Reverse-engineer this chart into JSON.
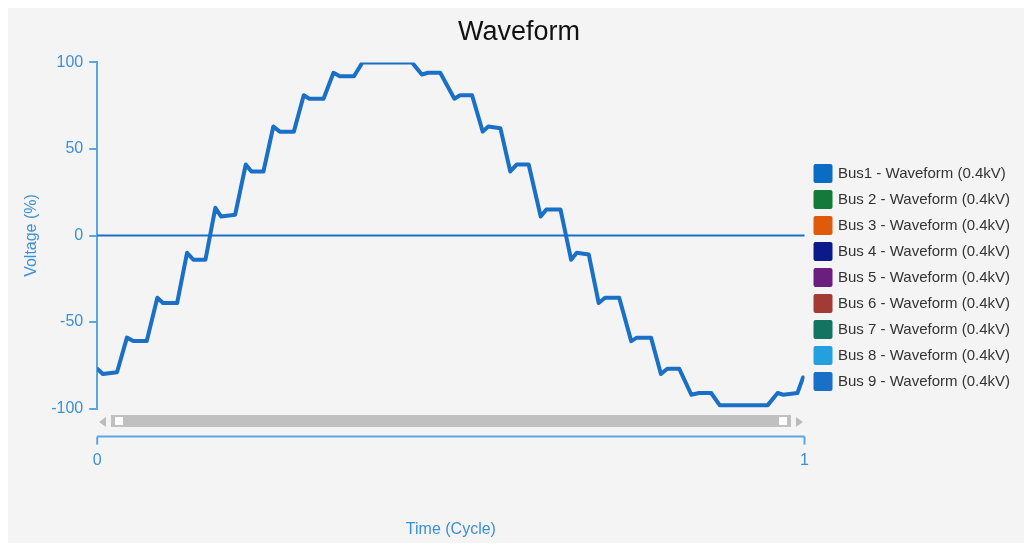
{
  "chart_data": {
    "type": "line",
    "title": "Waveform",
    "xlabel": "Time (Cycle)",
    "ylabel": "Voltage (%)",
    "x": [
      0,
      0.008,
      0.028,
      0.042,
      0.051,
      0.07,
      0.085,
      0.093,
      0.113,
      0.127,
      0.136,
      0.153,
      0.167,
      0.175,
      0.195,
      0.21,
      0.218,
      0.235,
      0.249,
      0.258,
      0.278,
      0.292,
      0.3,
      0.32,
      0.334,
      0.343,
      0.363,
      0.375,
      0.445,
      0.459,
      0.468,
      0.485,
      0.505,
      0.513,
      0.53,
      0.545,
      0.553,
      0.57,
      0.584,
      0.593,
      0.61,
      0.627,
      0.635,
      0.655,
      0.67,
      0.678,
      0.695,
      0.709,
      0.718,
      0.738,
      0.755,
      0.763,
      0.783,
      0.797,
      0.806,
      0.823,
      0.84,
      0.851,
      0.868,
      0.88,
      0.948,
      0.962,
      0.97,
      0.99,
      0.998
    ],
    "series": [
      {
        "name": "Bus1 - Waveform (0.4kV)",
        "color": "#0b6cc4",
        "values": [
          null,
          null,
          null,
          null,
          null,
          null,
          null,
          null,
          null,
          null,
          null,
          null,
          null,
          null,
          null,
          null,
          null,
          null,
          null,
          null,
          null,
          null,
          null,
          null,
          null,
          null,
          null,
          null,
          null,
          null,
          null,
          null,
          null,
          null,
          null,
          null,
          null,
          null,
          null,
          null,
          null,
          null,
          null,
          null,
          null,
          null,
          null,
          null,
          null,
          null,
          null,
          null,
          null,
          null,
          null,
          null,
          null,
          null,
          null,
          null,
          null,
          null,
          null,
          null,
          null
        ]
      },
      {
        "name": "Bus 2 - Waveform (0.4kV)",
        "color": "#137a3c",
        "values": [
          null,
          null,
          null,
          null,
          null,
          null,
          null,
          null,
          null,
          null,
          null,
          null,
          null,
          null,
          null,
          null,
          null,
          null,
          null,
          null,
          null,
          null,
          null,
          null,
          null,
          null,
          null,
          null,
          null,
          null,
          null,
          null,
          null,
          null,
          null,
          null,
          null,
          null,
          null,
          null,
          null,
          null,
          null,
          null,
          null,
          null,
          null,
          null,
          null,
          null,
          null,
          null,
          null,
          null,
          null,
          null,
          null,
          null,
          null,
          null,
          null,
          null,
          null,
          null,
          null
        ]
      },
      {
        "name": "Bus 3 - Waveform (0.4kV)",
        "color": "#e05a0c",
        "values": [
          null,
          null,
          null,
          null,
          null,
          null,
          null,
          null,
          null,
          null,
          null,
          null,
          null,
          null,
          null,
          null,
          null,
          null,
          null,
          null,
          null,
          null,
          null,
          null,
          null,
          null,
          null,
          null,
          null,
          null,
          null,
          null,
          null,
          null,
          null,
          null,
          null,
          null,
          null,
          null,
          null,
          null,
          null,
          null,
          null,
          null,
          null,
          null,
          null,
          null,
          null,
          null,
          null,
          null,
          null,
          null,
          null,
          null,
          null,
          null,
          null,
          null,
          null,
          null,
          null
        ]
      },
      {
        "name": "Bus 4 - Waveform (0.4kV)",
        "color": "#0a1a8a",
        "values": [
          null,
          null,
          null,
          null,
          null,
          null,
          null,
          null,
          null,
          null,
          null,
          null,
          null,
          null,
          null,
          null,
          null,
          null,
          null,
          null,
          null,
          null,
          null,
          null,
          null,
          null,
          null,
          null,
          null,
          null,
          null,
          null,
          null,
          null,
          null,
          null,
          null,
          null,
          null,
          null,
          null,
          null,
          null,
          null,
          null,
          null,
          null,
          null,
          null,
          null,
          null,
          null,
          null,
          null,
          null,
          null,
          null,
          null,
          null,
          null,
          null,
          null,
          null,
          null,
          null
        ]
      },
      {
        "name": "Bus 5 - Waveform (0.4kV)",
        "color": "#6a1f7e",
        "values": [
          null,
          null,
          null,
          null,
          null,
          null,
          null,
          null,
          null,
          null,
          null,
          null,
          null,
          null,
          null,
          null,
          null,
          null,
          null,
          null,
          null,
          null,
          null,
          null,
          null,
          null,
          null,
          null,
          null,
          null,
          null,
          null,
          null,
          null,
          null,
          null,
          null,
          null,
          null,
          null,
          null,
          null,
          null,
          null,
          null,
          null,
          null,
          null,
          null,
          null,
          null,
          null,
          null,
          null,
          null,
          null,
          null,
          null,
          null,
          null,
          null,
          null,
          null,
          null,
          null
        ]
      },
      {
        "name": "Bus 6 - Waveform (0.4kV)",
        "color": "#a23a36",
        "values": [
          null,
          null,
          null,
          null,
          null,
          null,
          null,
          null,
          null,
          null,
          null,
          null,
          null,
          null,
          null,
          null,
          null,
          null,
          null,
          null,
          null,
          null,
          null,
          null,
          null,
          null,
          null,
          null,
          null,
          null,
          null,
          null,
          null,
          null,
          null,
          null,
          null,
          null,
          null,
          null,
          null,
          null,
          null,
          null,
          null,
          null,
          null,
          null,
          null,
          null,
          null,
          null,
          null,
          null,
          null,
          null,
          null,
          null,
          null,
          null,
          null,
          null,
          null,
          null,
          null
        ]
      },
      {
        "name": "Bus 7 - Waveform (0.4kV)",
        "color": "#137462",
        "values": [
          null,
          null,
          null,
          null,
          null,
          null,
          null,
          null,
          null,
          null,
          null,
          null,
          null,
          null,
          null,
          null,
          null,
          null,
          null,
          null,
          null,
          null,
          null,
          null,
          null,
          null,
          null,
          null,
          null,
          null,
          null,
          null,
          null,
          null,
          null,
          null,
          null,
          null,
          null,
          null,
          null,
          null,
          null,
          null,
          null,
          null,
          null,
          null,
          null,
          null,
          null,
          null,
          null,
          null,
          null,
          null,
          null,
          null,
          null,
          null,
          null,
          null,
          null,
          null,
          null
        ]
      },
      {
        "name": "Bus 8 - Waveform (0.4kV)",
        "color": "#24a0e0",
        "values": [
          null,
          null,
          null,
          null,
          null,
          null,
          null,
          null,
          null,
          null,
          null,
          null,
          null,
          null,
          null,
          null,
          null,
          null,
          null,
          null,
          null,
          null,
          null,
          null,
          null,
          null,
          null,
          null,
          null,
          null,
          null,
          null,
          null,
          null,
          null,
          null,
          null,
          null,
          null,
          null,
          null,
          null,
          null,
          null,
          null,
          null,
          null,
          null,
          null,
          null,
          null,
          null,
          null,
          null,
          null,
          null,
          null,
          null,
          null,
          null,
          null,
          null,
          null,
          null,
          null
        ]
      },
      {
        "name": "Bus 9 - Waveform (0.4kV)",
        "color": "#1a6fc6",
        "values": [
          -77,
          -80,
          -79,
          -59,
          -61,
          -61,
          -36,
          -39,
          -39,
          -10,
          -14,
          -14,
          16,
          11,
          12,
          41,
          37,
          37,
          63,
          60,
          60,
          81,
          79,
          79,
          94,
          92,
          92,
          100,
          100,
          93,
          94,
          94,
          79,
          81,
          81,
          60,
          63,
          62,
          37,
          41,
          41,
          11,
          15,
          15,
          -14,
          -10,
          -11,
          -39,
          -36,
          -36,
          -61,
          -59,
          -59,
          -80,
          -77,
          -77,
          -92,
          -91,
          -91,
          -98,
          -98,
          -91,
          -92,
          -91,
          -82
        ]
      }
    ],
    "xlim": [
      0,
      1
    ],
    "xticks": [
      0,
      1
    ],
    "ylim": [
      -100,
      100
    ],
    "yticks": [
      -100,
      -50,
      0,
      50,
      100
    ],
    "ref_lines": [
      {
        "axis": "y",
        "value": 0,
        "color": "#1a6fc6"
      }
    ],
    "grid": false,
    "legend": "right",
    "marker": "none",
    "line_style": "solid"
  }
}
